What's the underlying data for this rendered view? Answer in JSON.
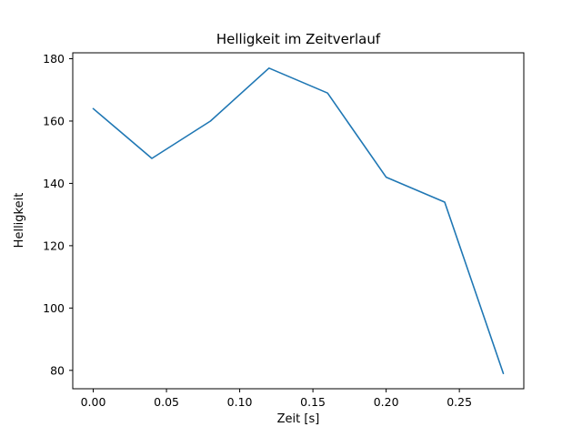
{
  "chart_data": {
    "type": "line",
    "title": "Helligkeit im Zeitverlauf",
    "xlabel": "Zeit [s]",
    "ylabel": "Helligkeit",
    "x": [
      0.0,
      0.04,
      0.08,
      0.12,
      0.16,
      0.2,
      0.24,
      0.28
    ],
    "y": [
      164,
      148,
      160,
      177,
      169,
      142,
      134,
      79
    ],
    "series_name": "Helligkeit",
    "xticks": [
      0.0,
      0.05,
      0.1,
      0.15,
      0.2,
      0.25
    ],
    "xtick_labels": [
      "0.00",
      "0.05",
      "0.10",
      "0.15",
      "0.20",
      "0.25"
    ],
    "yticks": [
      80,
      100,
      120,
      140,
      160,
      180
    ],
    "ytick_labels": [
      "80",
      "100",
      "120",
      "140",
      "160",
      "180"
    ],
    "xlim": [
      -0.014,
      0.294
    ],
    "ylim": [
      74.1,
      181.9
    ],
    "grid": false,
    "legend": null,
    "line_color": "#1f77b4",
    "frame_color": "#000000",
    "background_color": "#ffffff"
  }
}
